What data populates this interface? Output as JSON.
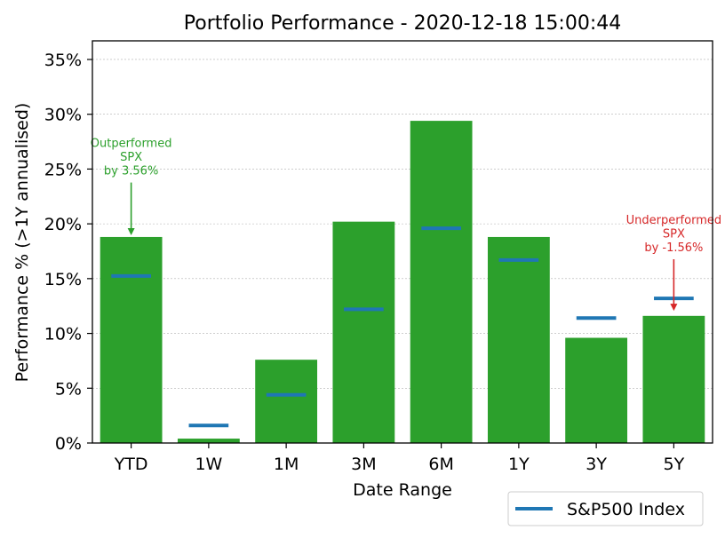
{
  "chart_data": {
    "type": "bar",
    "title": "Portfolio Performance - 2020-12-18 15:00:44",
    "xlabel": "Date Range",
    "ylabel": "Performance % (>1Y annualised)",
    "categories": [
      "YTD",
      "1W",
      "1M",
      "3M",
      "6M",
      "1Y",
      "3Y",
      "5Y"
    ],
    "series": [
      {
        "name": "Portfolio",
        "type": "bar",
        "color": "#2ca02c",
        "values": [
          18.8,
          0.4,
          7.6,
          20.2,
          29.4,
          18.8,
          9.6,
          11.6
        ]
      },
      {
        "name": "S&P500 Index",
        "type": "hline",
        "color": "#1f77b4",
        "values": [
          15.24,
          1.6,
          4.4,
          12.2,
          19.6,
          16.7,
          11.4,
          13.2
        ]
      }
    ],
    "ylim": [
      0,
      36.7
    ],
    "yticks": [
      0,
      5,
      10,
      15,
      20,
      25,
      30,
      35
    ],
    "ytick_labels": [
      "0%",
      "5%",
      "10%",
      "15%",
      "20%",
      "25%",
      "30%",
      "35%"
    ],
    "grid": true,
    "legend": {
      "position": "bottom-right",
      "entries": [
        "S&P500 Index"
      ]
    },
    "annotations": [
      {
        "category": "YTD",
        "lines": [
          "Outperformed",
          "SPX",
          "by 3.56%"
        ],
        "color": "#2ca02c",
        "arrow_to_value": 18.8,
        "text_value": 24.5
      },
      {
        "category": "5Y",
        "lines": [
          "Underperformed",
          "SPX",
          "by -1.56%"
        ],
        "color": "#d62728",
        "arrow_to_value": 11.9,
        "text_value": 17.5
      }
    ]
  }
}
